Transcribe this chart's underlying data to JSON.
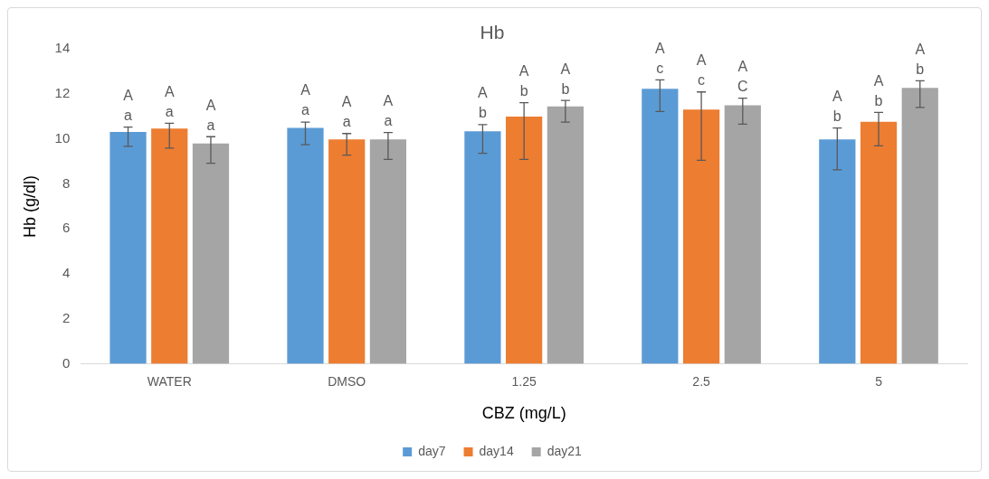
{
  "chart_data": {
    "type": "bar",
    "title": "Hb",
    "xlabel": "CBZ (mg/L)",
    "ylabel": "Hb (g/dl)",
    "categories": [
      "WATER",
      "DMSO",
      "1.25",
      "2.5",
      "5"
    ],
    "series": [
      {
        "name": "day7",
        "color": "#5b9bd5",
        "values": [
          10.31,
          10.49,
          10.34,
          12.23,
          9.98
        ],
        "errors": [
          [
            9.67,
            10.53
          ],
          [
            9.74,
            10.75
          ],
          [
            9.36,
            10.64
          ],
          [
            11.22,
            12.63
          ],
          [
            8.63,
            10.49
          ]
        ],
        "value_labels": [
          "A\na",
          "A\na",
          "A\nb",
          "A\nc",
          "A\nb"
        ]
      },
      {
        "name": "day14",
        "color": "#ed7d31",
        "values": [
          10.46,
          9.98,
          10.99,
          11.31,
          10.76
        ],
        "errors": [
          [
            9.59,
            10.7
          ],
          [
            9.28,
            10.24
          ],
          [
            9.09,
            11.61
          ],
          [
            9.05,
            12.09
          ],
          [
            9.69,
            11.18
          ]
        ],
        "value_labels": [
          "A\na",
          "A\na",
          "A\nb",
          "A\nc",
          "A\nb"
        ]
      },
      {
        "name": "day21",
        "color": "#a5a5a5",
        "values": [
          9.8,
          9.98,
          11.45,
          11.5,
          12.27
        ],
        "errors": [
          [
            8.92,
            10.1
          ],
          [
            9.09,
            10.29
          ],
          [
            10.75,
            11.71
          ],
          [
            10.66,
            11.81
          ],
          [
            11.4,
            12.59
          ]
        ],
        "value_labels": [
          "A\na",
          "A\na",
          "A\nb",
          "A\nC",
          "A\nb"
        ]
      }
    ],
    "ylim": [
      0,
      14
    ],
    "yticks": [
      0,
      2,
      4,
      6,
      8,
      10,
      12,
      14
    ],
    "grid": false,
    "legend": "bottom"
  }
}
